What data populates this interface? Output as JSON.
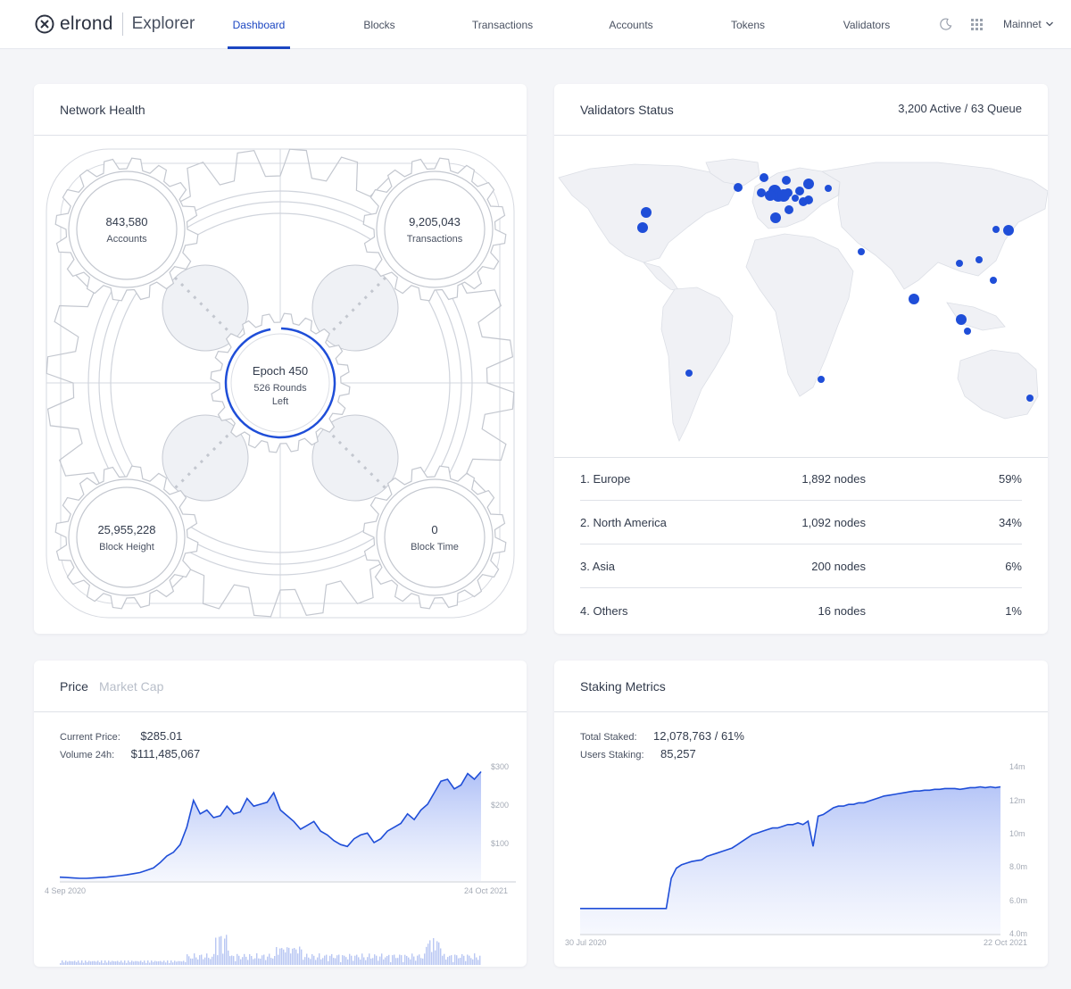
{
  "header": {
    "logo": "elrond",
    "app_name": "Explorer",
    "nav": [
      "Dashboard",
      "Blocks",
      "Transactions",
      "Accounts",
      "Tokens",
      "Validators"
    ],
    "active_nav": "Dashboard",
    "network": "Mainnet",
    "icons": [
      "moon-icon",
      "grid-icon",
      "chevron-down-icon"
    ]
  },
  "network_health": {
    "title": "Network Health",
    "accounts": {
      "value": "843,580",
      "label": "Accounts"
    },
    "transactions": {
      "value": "9,205,043",
      "label": "Transactions"
    },
    "epoch": {
      "value": "Epoch 450",
      "rounds_line1": "526 Rounds",
      "rounds_line2": "Left",
      "progress": 0.97
    },
    "block_height": {
      "value": "25,955,228",
      "label": "Block Height"
    },
    "block_time": {
      "value": "0",
      "label": "Block Time"
    }
  },
  "validators": {
    "title": "Validators Status",
    "summary": "3,200 Active / 63 Queue",
    "regions": [
      {
        "name": "1. Europe",
        "nodes": "1,892 nodes",
        "pct": "59%"
      },
      {
        "name": "2. North America",
        "nodes": "1,092 nodes",
        "pct": "34%"
      },
      {
        "name": "3. Asia",
        "nodes": "200 nodes",
        "pct": "6%"
      },
      {
        "name": "4. Others",
        "nodes": "16 nodes",
        "pct": "1%"
      }
    ]
  },
  "price": {
    "tab_active": "Price",
    "tab_inactive": "Market Cap",
    "current_label": "Current Price:",
    "current_value": "$285.01",
    "volume_label": "Volume 24h:",
    "volume_value": "$111,485,067"
  },
  "staking": {
    "title": "Staking Metrics",
    "total_label": "Total Staked:",
    "total_value": "12,078,763 / 61%",
    "users_label": "Users Staking:",
    "users_value": "85,257"
  },
  "chart_data": [
    {
      "type": "area",
      "x_start": "4 Sep 2020",
      "x_end": "24 Oct 2021",
      "y_ticks": [
        "$300",
        "$200",
        "$100"
      ],
      "ylim": [
        0,
        300
      ],
      "color": "#1f4ed8",
      "values": [
        10,
        9,
        8,
        7,
        7,
        8,
        9,
        10,
        12,
        14,
        16,
        19,
        22,
        28,
        34,
        48,
        65,
        75,
        95,
        140,
        210,
        175,
        185,
        165,
        170,
        195,
        175,
        180,
        215,
        195,
        200,
        205,
        230,
        185,
        170,
        155,
        135,
        145,
        155,
        130,
        120,
        105,
        95,
        90,
        110,
        120,
        125,
        100,
        110,
        130,
        140,
        150,
        175,
        160,
        185,
        200,
        230,
        260,
        265,
        240,
        250,
        280,
        265,
        285
      ]
    },
    {
      "type": "area",
      "x_start": "30 Jul 2020",
      "x_end": "22 Oct 2021",
      "y_ticks": [
        "14m",
        "12m",
        "10m",
        "8.0m",
        "6.0m",
        "4.0m"
      ],
      "ylim": [
        4000000,
        14000000
      ],
      "color": "#1f4ed8",
      "values": [
        5500000,
        5500000,
        5500000,
        5500000,
        5500000,
        5500000,
        5500000,
        5500000,
        5500000,
        5500000,
        5500000,
        5500000,
        5500000,
        5500000,
        5500000,
        5500000,
        5500000,
        5500000,
        7300000,
        7900000,
        8100000,
        8200000,
        8300000,
        8350000,
        8400000,
        8600000,
        8700000,
        8800000,
        8900000,
        9000000,
        9100000,
        9300000,
        9500000,
        9700000,
        9900000,
        10000000,
        10100000,
        10200000,
        10300000,
        10300000,
        10400000,
        10500000,
        10500000,
        10600000,
        10500000,
        10700000,
        9200000,
        11000000,
        11100000,
        11300000,
        11500000,
        11600000,
        11600000,
        11700000,
        11700000,
        11800000,
        11800000,
        11900000,
        12000000,
        12100000,
        12200000,
        12250000,
        12300000,
        12350000,
        12400000,
        12450000,
        12500000,
        12500000,
        12550000,
        12550000,
        12600000,
        12600000,
        12650000,
        12650000,
        12650000,
        12600000,
        12650000,
        12700000,
        12700000,
        12750000,
        12700000,
        12750000,
        12700000,
        12750000
      ]
    }
  ]
}
